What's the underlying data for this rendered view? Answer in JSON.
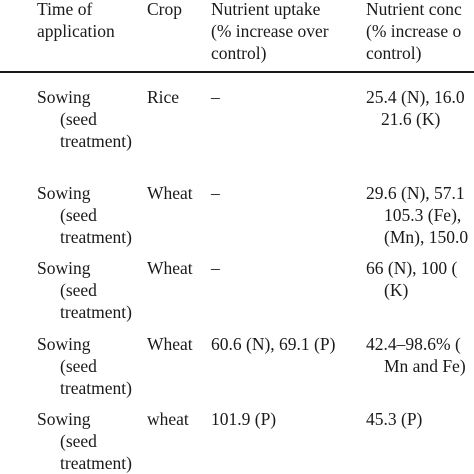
{
  "table": {
    "headers": {
      "time": [
        "Time of",
        "application"
      ],
      "crop": [
        "Crop"
      ],
      "uptake": [
        "Nutrient uptake",
        "(% increase over",
        "control)"
      ],
      "concentration": [
        "Nutrient conc",
        "(% increase o",
        "control)"
      ]
    },
    "rows": [
      {
        "time": [
          "Sowing",
          "(seed",
          "treatment)"
        ],
        "crop": "Rice",
        "uptake": [
          "–"
        ],
        "concentration": [
          "25.4 (N), 16.0",
          "21.6 (K)"
        ]
      },
      {
        "time": [
          "Sowing",
          "(seed",
          "treatment)"
        ],
        "crop": "Wheat",
        "uptake": [
          "–"
        ],
        "concentration": [
          "29.6 (N), 57.1",
          "105.3 (Fe),",
          "(Mn), 150.0"
        ]
      },
      {
        "time": [
          "Sowing",
          "(seed",
          "treatment)"
        ],
        "crop": "Wheat",
        "uptake": [
          "–"
        ],
        "concentration": [
          "66 (N), 100 (",
          "(K)"
        ]
      },
      {
        "time": [
          "Sowing",
          "(seed",
          "treatment)"
        ],
        "crop": "Wheat",
        "uptake": [
          "60.6 (N), 69.1 (P)"
        ],
        "concentration": [
          "42.4–98.6% (",
          "Mn and Fe)"
        ]
      },
      {
        "time": [
          "Sowing",
          "(seed",
          "treatment)"
        ],
        "crop": "wheat",
        "uptake": [
          "101.9 (P)"
        ],
        "concentration": [
          "45.3 (P)"
        ]
      }
    ]
  }
}
